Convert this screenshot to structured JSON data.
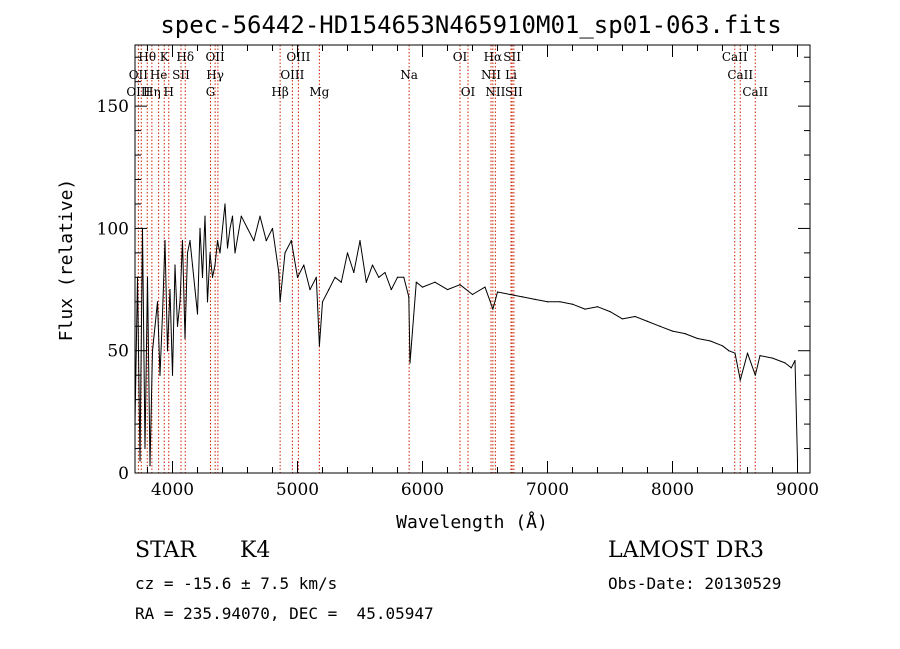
{
  "chart_data": {
    "type": "line",
    "title": "spec-56442-HD154653N465910M01_sp01-063.fits",
    "xlabel": "Wavelength (Å)",
    "ylabel": "Flux (relative)",
    "xlim": [
      3700,
      9100
    ],
    "ylim": [
      0,
      175
    ],
    "x_ticks": [
      4000,
      5000,
      6000,
      7000,
      8000,
      9000
    ],
    "y_ticks": [
      0,
      50,
      100,
      150
    ],
    "series": [
      {
        "name": "spectrum",
        "x": [
          3700,
          3720,
          3740,
          3760,
          3780,
          3800,
          3820,
          3840,
          3860,
          3880,
          3900,
          3920,
          3940,
          3960,
          3980,
          4000,
          4020,
          4040,
          4060,
          4080,
          4100,
          4120,
          4140,
          4160,
          4180,
          4200,
          4220,
          4240,
          4260,
          4280,
          4300,
          4320,
          4340,
          4360,
          4380,
          4400,
          4420,
          4440,
          4460,
          4480,
          4500,
          4550,
          4600,
          4650,
          4700,
          4750,
          4800,
          4850,
          4861,
          4900,
          4950,
          5000,
          5050,
          5100,
          5150,
          5175,
          5200,
          5250,
          5300,
          5350,
          5400,
          5450,
          5500,
          5550,
          5600,
          5650,
          5700,
          5750,
          5800,
          5850,
          5890,
          5900,
          5950,
          6000,
          6100,
          6200,
          6300,
          6400,
          6500,
          6563,
          6600,
          6700,
          6800,
          6900,
          7000,
          7100,
          7200,
          7300,
          7400,
          7500,
          7600,
          7700,
          7800,
          7900,
          8000,
          8100,
          8200,
          8300,
          8400,
          8450,
          8500,
          8542,
          8600,
          8662,
          8700,
          8800,
          8900,
          8950,
          8980,
          9000
        ],
        "values": [
          20,
          80,
          5,
          100,
          10,
          80,
          3,
          50,
          60,
          70,
          40,
          65,
          95,
          50,
          75,
          40,
          85,
          60,
          70,
          95,
          55,
          90,
          95,
          85,
          75,
          65,
          100,
          80,
          105,
          70,
          90,
          80,
          85,
          95,
          90,
          100,
          110,
          92,
          100,
          105,
          90,
          105,
          100,
          95,
          105,
          95,
          100,
          82,
          70,
          90,
          95,
          80,
          85,
          75,
          80,
          52,
          70,
          75,
          80,
          78,
          90,
          82,
          95,
          78,
          85,
          80,
          82,
          75,
          80,
          80,
          72,
          45,
          78,
          76,
          78,
          75,
          77,
          73,
          76,
          67,
          74,
          73,
          72,
          71,
          70,
          70,
          69,
          67,
          68,
          66,
          63,
          64,
          62,
          60,
          58,
          57,
          55,
          54,
          52,
          50,
          49,
          38,
          49,
          40,
          48,
          47,
          45,
          43,
          46,
          5
        ]
      }
    ],
    "line_labels": [
      {
        "text": "Hθ",
        "wavelength": 3798,
        "row": 1
      },
      {
        "text": "K",
        "wavelength": 3934,
        "row": 1
      },
      {
        "text": "Hδ",
        "wavelength": 4102,
        "row": 1
      },
      {
        "text": "OII",
        "wavelength": 4341,
        "row": 1
      },
      {
        "text": "OIII",
        "wavelength": 5007,
        "row": 1
      },
      {
        "text": "OI",
        "wavelength": 6300,
        "row": 1
      },
      {
        "text": "Hα",
        "wavelength": 6563,
        "row": 1
      },
      {
        "text": "SII",
        "wavelength": 6717,
        "row": 1
      },
      {
        "text": "CaII",
        "wavelength": 8498,
        "row": 1
      },
      {
        "text": "OII",
        "wavelength": 3727,
        "row": 2
      },
      {
        "text": "He",
        "wavelength": 3889,
        "row": 2
      },
      {
        "text": "SII",
        "wavelength": 4068,
        "row": 2
      },
      {
        "text": "Hγ",
        "wavelength": 4341,
        "row": 2
      },
      {
        "text": "OIII",
        "wavelength": 4959,
        "row": 2
      },
      {
        "text": "Na",
        "wavelength": 5893,
        "row": 2
      },
      {
        "text": "NII",
        "wavelength": 6548,
        "row": 2
      },
      {
        "text": "Li",
        "wavelength": 6708,
        "row": 2
      },
      {
        "text": "CaII",
        "wavelength": 8542,
        "row": 2
      },
      {
        "text": "OIII",
        "wavelength": 3727,
        "row": 3
      },
      {
        "text": "Hη",
        "wavelength": 3835,
        "row": 3
      },
      {
        "text": "H",
        "wavelength": 3970,
        "row": 3
      },
      {
        "text": "G",
        "wavelength": 4304,
        "row": 3
      },
      {
        "text": "Hβ",
        "wavelength": 4861,
        "row": 3
      },
      {
        "text": "Mg",
        "wavelength": 5175,
        "row": 3
      },
      {
        "text": "OI",
        "wavelength": 6364,
        "row": 3
      },
      {
        "text": "NII",
        "wavelength": 6583,
        "row": 3
      },
      {
        "text": "SII",
        "wavelength": 6731,
        "row": 3
      },
      {
        "text": "CaII",
        "wavelength": 8662,
        "row": 3
      }
    ],
    "marker_wavelengths": [
      3727,
      3750,
      3798,
      3835,
      3889,
      3934,
      3970,
      4068,
      4102,
      4304,
      4341,
      4363,
      4861,
      4959,
      5007,
      5175,
      5893,
      6300,
      6364,
      6548,
      6563,
      6583,
      6708,
      6717,
      6731,
      8498,
      8542,
      8662
    ]
  },
  "info": {
    "object_class": "STAR",
    "subclass": "K4",
    "survey": "LAMOST DR3",
    "redshift": "cz = -15.6 ± 7.5 km/s",
    "obs_date": "Obs-Date: 20130529",
    "coords": "RA = 235.94070, DEC =  45.05947"
  },
  "colors": {
    "spectrum": "#000000",
    "marker": "#cc2200",
    "axis": "#000000"
  }
}
